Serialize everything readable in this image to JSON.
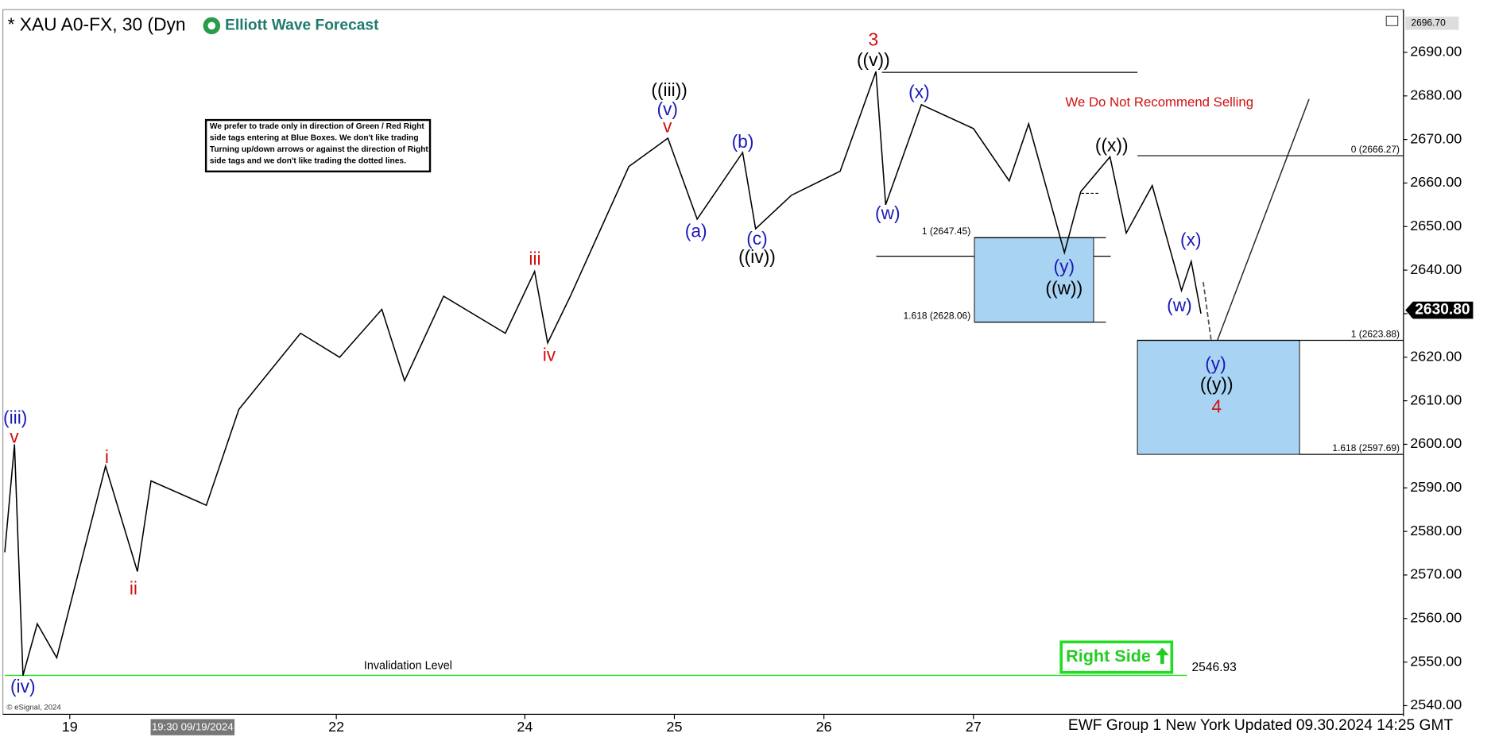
{
  "chart_data": {
    "type": "line",
    "title": "* XAU A0-FX, 30 (Dyn",
    "brand": "Elliott Wave Forecast",
    "x": [
      0,
      3,
      5.6,
      10,
      16,
      31,
      40.8,
      45,
      62,
      72,
      91,
      103,
      116,
      123,
      135,
      154,
      163,
      167,
      174,
      192,
      204,
      213,
      227,
      231,
      242,
      257,
      268,
      271,
      282,
      298,
      309,
      315,
      326,
      331,
      340,
      345,
      353,
      362,
      365,
      368
    ],
    "series": [
      {
        "color": "#000000",
        "values": [
          2575.2,
          2600,
          2546.9,
          2558.8,
          2551,
          2595,
          2570.8,
          2591.6,
          2586,
          2608,
          2625.5,
          2620,
          2631,
          2614.6,
          2634,
          2625.5,
          2639.7,
          2623.3,
          2634,
          2663.8,
          2670.3,
          2651.7,
          2667,
          2649.5,
          2657.2,
          2662.7,
          2685.6,
          2655,
          2678,
          2672.5,
          2660.5,
          2673.6,
          2644,
          2658,
          2666,
          2648.5,
          2659.4,
          2635.3,
          2642,
          2630
        ]
      }
    ],
    "xlim": [
      0,
      430
    ],
    "xticks": [
      {
        "value": 20,
        "label": "19"
      },
      {
        "value": 102,
        "label": "22"
      },
      {
        "value": 160,
        "label": "24"
      },
      {
        "value": 206,
        "label": "25"
      },
      {
        "value": 252,
        "label": "26"
      },
      {
        "value": 298,
        "label": "27"
      }
    ],
    "ylim": [
      2538,
      2699.4
    ],
    "yticks": [
      {
        "value": 2540,
        "label": "2540.00"
      },
      {
        "value": 2550,
        "label": "2550.00"
      },
      {
        "value": 2560,
        "label": "2560.00"
      },
      {
        "value": 2570,
        "label": "2570.00"
      },
      {
        "value": 2580,
        "label": "2580.00"
      },
      {
        "value": 2590,
        "label": "2590.00"
      },
      {
        "value": 2600,
        "label": "2600.00"
      },
      {
        "value": 2610,
        "label": "2610.00"
      },
      {
        "value": 2620,
        "label": "2620.00"
      },
      {
        "value": 2630,
        "label": "2630.00"
      },
      {
        "value": 2640,
        "label": "2640.00"
      },
      {
        "value": 2650,
        "label": "2650.00"
      },
      {
        "value": 2660,
        "label": "2660.00"
      },
      {
        "value": 2670,
        "label": "2670.00"
      },
      {
        "value": 2680,
        "label": "2680.00"
      },
      {
        "value": 2690,
        "label": "2690.00"
      }
    ],
    "levels": [
      {
        "value": 2666.27,
        "label": "0 (2666.27)"
      },
      {
        "value": 2623.88,
        "label": "1 (2623.88)"
      },
      {
        "value": 2597.69,
        "label": "1.618 (2597.69)"
      },
      {
        "value": 2647.45,
        "label": "1 (2647.45)"
      },
      {
        "value": 2628.06,
        "label": "1.618 (2628.06)"
      }
    ],
    "invalidation": {
      "label": "Invalidation Level",
      "value": 2546.93,
      "value_label": "2546.93"
    },
    "last_price": {
      "value": 2630.8,
      "label": "2630.80"
    },
    "top_price": {
      "value": 2696.7,
      "label": "2696.70"
    },
    "wave_labels": [
      {
        "text": "(iii)",
        "color": "#1a1ab8"
      },
      {
        "text": "v",
        "color": "#d01010"
      },
      {
        "text": "(iv)",
        "color": "#1a1ab8"
      },
      {
        "text": "i",
        "color": "#d01010"
      },
      {
        "text": "ii",
        "color": "#d01010"
      },
      {
        "text": "iii",
        "color": "#d01010"
      },
      {
        "text": "iv",
        "color": "#d01010"
      },
      {
        "text": "((iii))",
        "color": "#000000"
      },
      {
        "text": "(v)",
        "color": "#1a1ab8"
      },
      {
        "text": "v",
        "color": "#d01010"
      },
      {
        "text": "(a)",
        "color": "#1a1ab8"
      },
      {
        "text": "(b)",
        "color": "#1a1ab8"
      },
      {
        "text": "(c)",
        "color": "#1a1ab8"
      },
      {
        "text": "((iv))",
        "color": "#000000"
      },
      {
        "text": "3",
        "color": "#d01010"
      },
      {
        "text": "((v))",
        "color": "#000000"
      },
      {
        "text": "(w)",
        "color": "#1a1ab8"
      },
      {
        "text": "(x)",
        "color": "#1a1ab8"
      },
      {
        "text": "((x))",
        "color": "#000000"
      },
      {
        "text": "(y)",
        "color": "#1a1ab8"
      },
      {
        "text": "((w))",
        "color": "#000000"
      },
      {
        "text": "(x)",
        "color": "#1a1ab8"
      },
      {
        "text": "(w)",
        "color": "#1a1ab8"
      },
      {
        "text": "(y)",
        "color": "#1a1ab8"
      },
      {
        "text": "((y))",
        "color": "#000000"
      },
      {
        "text": "4",
        "color": "#d01010"
      }
    ],
    "note": [
      "We prefer to trade only in direction of Green / Red Right",
      "side tags entering at Blue Boxes. We don't like trading",
      "Turning up/down arrows or against the direction of Right",
      "side tags and we don't like trading the dotted lines."
    ],
    "warning": "We Do Not Recommend Selling",
    "right_side": "Right Side",
    "cursor_time": "19:30 09/19/2024",
    "footer": "EWF Group 1 New York Updated 09.30.2024 14:25 GMT",
    "copyright": "© eSignal, 2024"
  }
}
